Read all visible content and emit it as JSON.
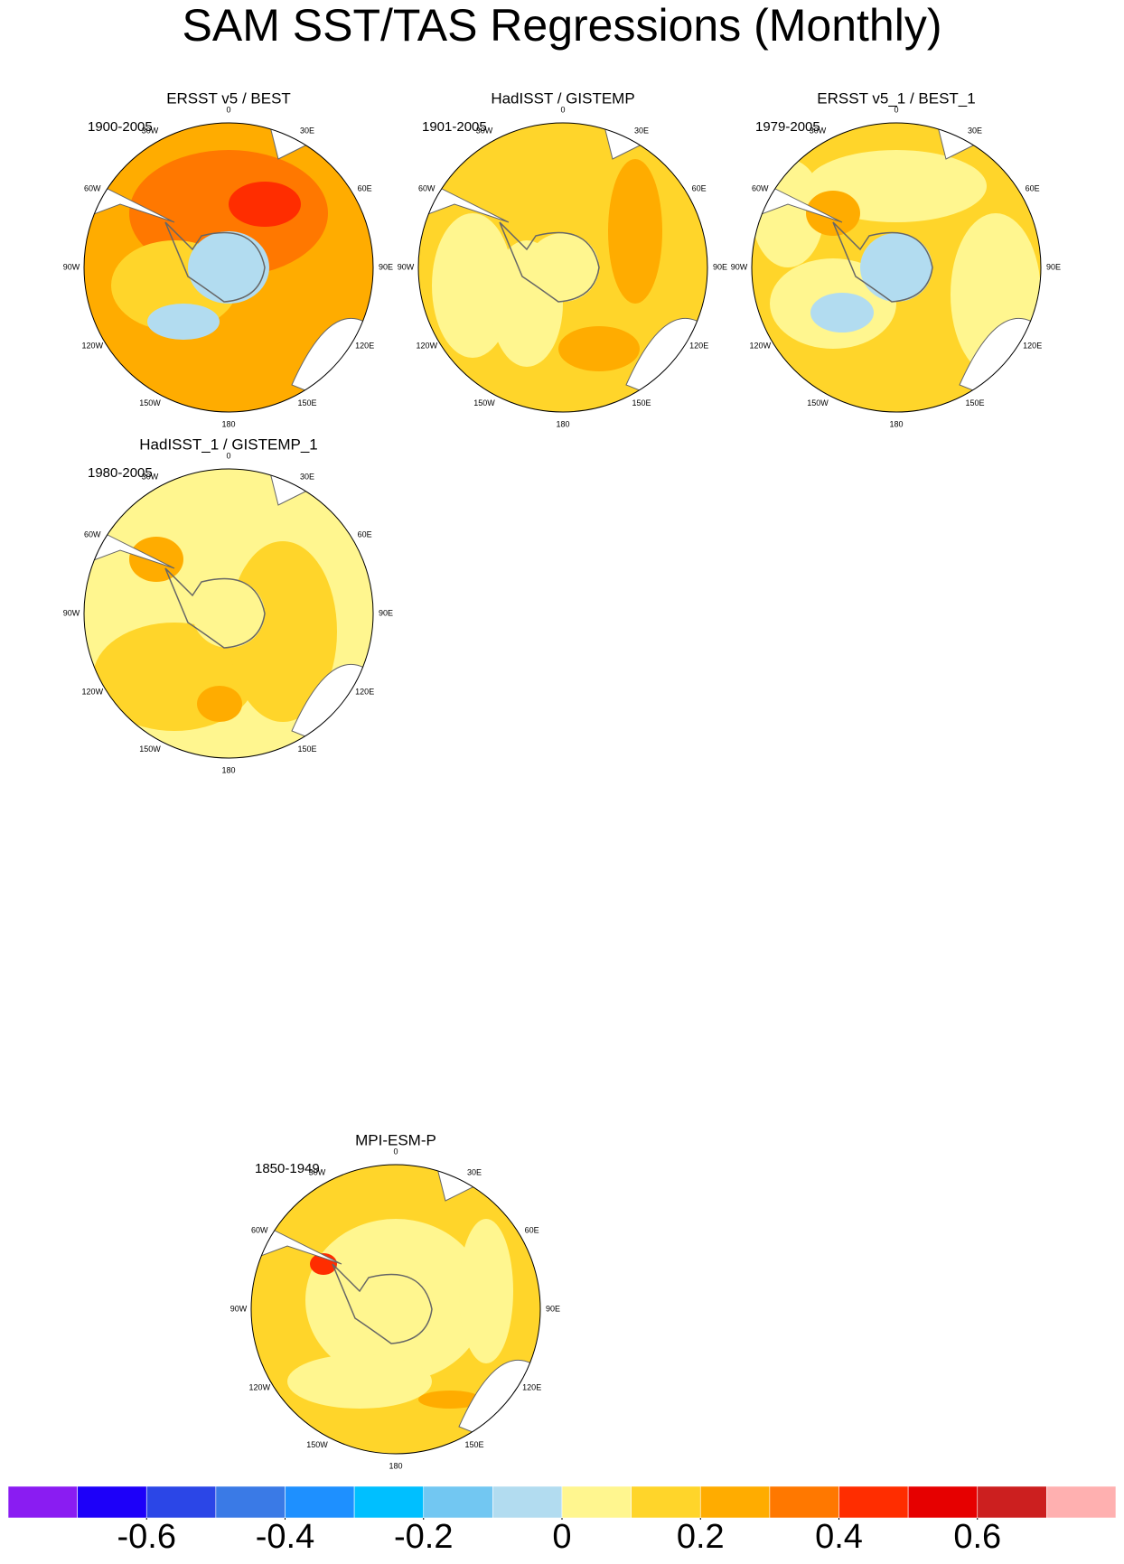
{
  "chart_data": {
    "type": "map",
    "title": "SAM SST/TAS Regressions (Monthly)",
    "longitude_labels": [
      "0",
      "30E",
      "60E",
      "90E",
      "120E",
      "150E",
      "180",
      "150W",
      "120W",
      "90W",
      "60W",
      "30W"
    ],
    "panels": [
      {
        "title": "ERSST v5 / BEST",
        "period": "1900-2005"
      },
      {
        "title": "HadISST / GISTEMP",
        "period": "1901-2005"
      },
      {
        "title": "ERSST v5_1 / BEST_1",
        "period": "1979-2005"
      },
      {
        "title": "HadISST_1 / GISTEMP_1",
        "period": "1980-2005"
      },
      {
        "title": "MPI-ESM-P",
        "period": "1850-1949"
      }
    ],
    "colorbar": {
      "colors": [
        "#8a1cf2",
        "#1d00f9",
        "#2b46e7",
        "#3a7ae6",
        "#1e90ff",
        "#00bfff",
        "#72c7f2",
        "#b2dcf0",
        "#fff68f",
        "#ffd52a",
        "#ffac00",
        "#ff7800",
        "#ff2d00",
        "#e60000",
        "#cc1f1f",
        "#ffb0b0"
      ],
      "levels": [
        -0.7,
        -0.6,
        -0.5,
        -0.4,
        -0.3,
        -0.2,
        -0.1,
        0,
        0.1,
        0.2,
        0.3,
        0.4,
        0.5,
        0.6,
        0.7
      ],
      "xlim": [
        -0.8,
        0.8
      ],
      "xticks": [
        -0.6,
        -0.4,
        -0.2,
        0,
        0.2,
        0.4,
        0.6
      ]
    }
  }
}
